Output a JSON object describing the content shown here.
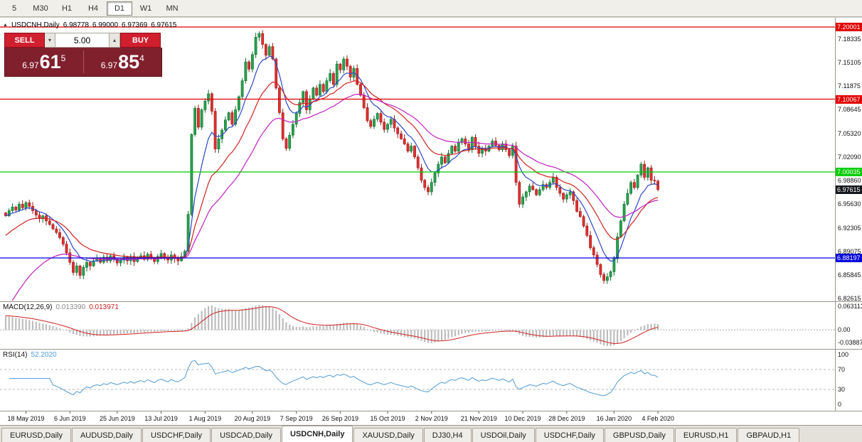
{
  "toolbar": {
    "timeframes": [
      "5",
      "M30",
      "H1",
      "H4",
      "D1",
      "W1",
      "MN"
    ],
    "active": "D1"
  },
  "chart_header": {
    "symbol": "USDCNH,Daily",
    "open": "6.98778",
    "high": "6.99000",
    "low": "6.97369",
    "close": "6.97615"
  },
  "trade_panel": {
    "sell_label": "SELL",
    "buy_label": "BUY",
    "volume": "5.00",
    "sell_price": {
      "prefix": "6.97",
      "big": "61",
      "sup": "5"
    },
    "buy_price": {
      "prefix": "6.97",
      "big": "85",
      "sup": "4"
    }
  },
  "main_axis": {
    "labels": [
      "7.18335",
      "7.15105",
      "7.11875",
      "7.08645",
      "7.05320",
      "7.02090",
      "6.98860",
      "6.95630",
      "6.92305",
      "6.89075",
      "6.85845",
      "6.82615"
    ],
    "hlines": [
      {
        "price": "7.20001",
        "value": 7.20001,
        "color": "#e00000"
      },
      {
        "price": "7.10067",
        "value": 7.10067,
        "color": "#e00000"
      },
      {
        "price": "7.00035",
        "value": 7.00035,
        "color": "#00cc00"
      },
      {
        "price": "6.88197",
        "value": 6.88197,
        "color": "#0000dd"
      }
    ],
    "current_price": {
      "price": "6.97615",
      "bg": "#15181d"
    }
  },
  "macd": {
    "title": "MACD(12,26,9)",
    "value_main": "0.013390",
    "value_signal": "0.013971",
    "axis_labels": [
      "0.063113",
      "0.00",
      "-0.038872"
    ]
  },
  "rsi": {
    "title": "RSI(14)",
    "value": "52.2020",
    "axis_labels": [
      "100",
      "70",
      "30",
      "0"
    ],
    "levels": [
      70,
      30
    ]
  },
  "dates": [
    "18 May 2019",
    "6 Jun 2019",
    "25 Jun 2019",
    "13 Jul 2019",
    "1 Aug 2019",
    "20 Aug 2019",
    "7 Sep 2019",
    "26 Sep 2019",
    "15 Oct 2019",
    "2 Nov 2019",
    "21 Nov 2019",
    "10 Dec 2019",
    "28 Dec 2019",
    "16 Jan 2020",
    "4 Feb 2020"
  ],
  "tabs": {
    "items": [
      "EURUSD,Daily",
      "AUDUSD,Daily",
      "USDCHF,Daily",
      "USDCAD,Daily",
      "USDCNH,Daily",
      "XAUUSD,Daily",
      "DJ30,H4",
      "USDOil,Daily",
      "USDCHF,Daily",
      "GBPUSD,Daily",
      "EURUSD,H1",
      "GBPAUD,H1"
    ],
    "active_index": 4
  },
  "chart_data": {
    "type": "candlestick",
    "symbol": "USDCNH",
    "timeframe": "Daily",
    "scale_top": 7.20001,
    "scale_bottom": 6.82615,
    "hlines": [
      7.20001,
      7.10067,
      7.00035,
      6.88197
    ],
    "ohlc_current": {
      "open": 6.98778,
      "high": 6.99,
      "low": 6.97369,
      "close": 6.97615
    },
    "closes": [
      6.94,
      6.947,
      6.952,
      6.948,
      6.956,
      6.951,
      6.958,
      6.953,
      6.947,
      6.941,
      6.936,
      6.94,
      6.933,
      6.928,
      6.922,
      6.917,
      6.91,
      6.901,
      6.889,
      6.876,
      6.862,
      6.871,
      6.858,
      6.869,
      6.876,
      6.871,
      6.878,
      6.881,
      6.876,
      6.883,
      6.878,
      6.885,
      6.88,
      6.875,
      6.879,
      6.883,
      6.878,
      6.884,
      6.877,
      6.882,
      6.885,
      6.88,
      6.887,
      6.882,
      6.877,
      6.884,
      6.888,
      6.883,
      6.879,
      6.886,
      6.881,
      6.878,
      6.884,
      6.891,
      6.942,
      7.052,
      7.088,
      7.062,
      7.086,
      7.098,
      7.108,
      7.084,
      7.032,
      7.046,
      7.058,
      7.072,
      7.082,
      7.066,
      7.086,
      7.104,
      7.126,
      7.152,
      7.142,
      7.162,
      7.186,
      7.191,
      7.176,
      7.161,
      7.173,
      7.156,
      7.116,
      7.082,
      7.046,
      7.033,
      7.051,
      7.066,
      7.081,
      7.096,
      7.111,
      7.086,
      7.101,
      7.116,
      7.106,
      7.121,
      7.111,
      7.126,
      7.136,
      7.121,
      7.149,
      7.141,
      7.156,
      7.146,
      7.131,
      7.143,
      7.121,
      7.106,
      7.089,
      7.071,
      7.063,
      7.073,
      7.081,
      7.069,
      7.059,
      7.066,
      7.073,
      7.061,
      7.053,
      7.046,
      7.039,
      7.029,
      7.036,
      7.021,
      7.006,
      6.989,
      6.979,
      6.973,
      6.986,
      6.999,
      7.011,
      7.021,
      7.013,
      7.026,
      7.036,
      7.029,
      7.041,
      7.046,
      7.039,
      7.031,
      7.048,
      7.036,
      7.026,
      7.033,
      7.029,
      7.036,
      7.043,
      7.037,
      7.031,
      7.039,
      7.031,
      7.023,
      7.036,
      6.986,
      6.956,
      6.966,
      6.973,
      6.981,
      6.976,
      6.969,
      6.976,
      6.983,
      6.979,
      6.986,
      6.993,
      6.979,
      6.971,
      6.963,
      6.969,
      6.973,
      6.961,
      6.946,
      6.939,
      6.926,
      6.913,
      6.896,
      6.886,
      6.873,
      6.859,
      6.851,
      6.856,
      6.863,
      6.881,
      6.911,
      6.933,
      6.956,
      6.971,
      6.986,
      6.979,
      6.996,
      7.011,
      6.993,
      7.006,
      6.989,
      6.98778,
      6.97615
    ],
    "colors": {
      "up": "#28a24e",
      "up_border": "#0f6e30",
      "down": "#e03030",
      "down_border": "#9c1a1a",
      "ma_fast": "#2b48c8",
      "ma_mid": "#d02020",
      "ma_slow": "#c020c0",
      "macd_hist": "#bdbdbd",
      "macd_signal": "#d02020",
      "rsi": "#4f9bd6"
    }
  }
}
